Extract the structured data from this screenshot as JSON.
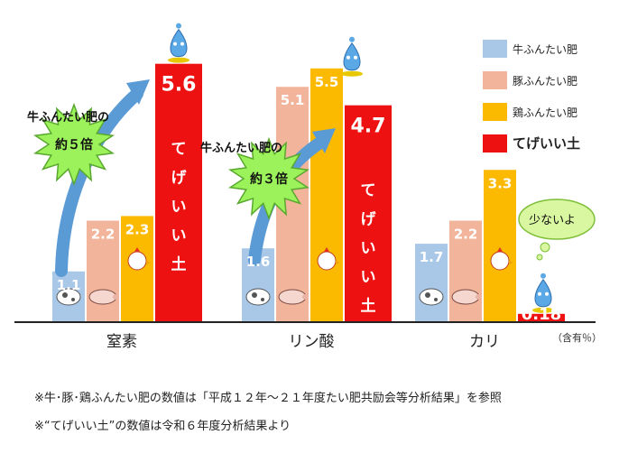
{
  "chart_data": {
    "type": "bar",
    "categories": [
      "窒素",
      "リン酸",
      "カリ"
    ],
    "unit_label": "（含有％）",
    "ylim": [
      0,
      6.2
    ],
    "grid": false,
    "legend_position": "top-right",
    "series": [
      {
        "name": "牛ふんたい肥",
        "color": "#a9c8e8",
        "values": [
          1.1,
          1.6,
          1.7
        ]
      },
      {
        "name": "豚ふんたい肥",
        "color": "#f2b49a",
        "values": [
          2.2,
          5.1,
          2.2
        ]
      },
      {
        "name": "鶏ふんたい肥",
        "color": "#fbb900",
        "values": [
          2.3,
          5.5,
          3.3
        ]
      },
      {
        "name": "てげいい土",
        "color": "#ee1111",
        "values": [
          5.6,
          4.7,
          0.18
        ],
        "bar_text": "てげいい土"
      }
    ],
    "annotations": [
      {
        "label": "牛ふんたい肥の",
        "burst": "約５倍"
      },
      {
        "label": "牛ふんたい肥の",
        "burst": "約３倍"
      }
    ],
    "speech_bubble": "少ないよ"
  },
  "notes": [
    "※牛･豚･鶏ふんたい肥の数値は「平成１２年～２１年度たい肥共励会等分析結果」を参照",
    "※“てげいい土”の数値は令和６年度分析結果より"
  ]
}
